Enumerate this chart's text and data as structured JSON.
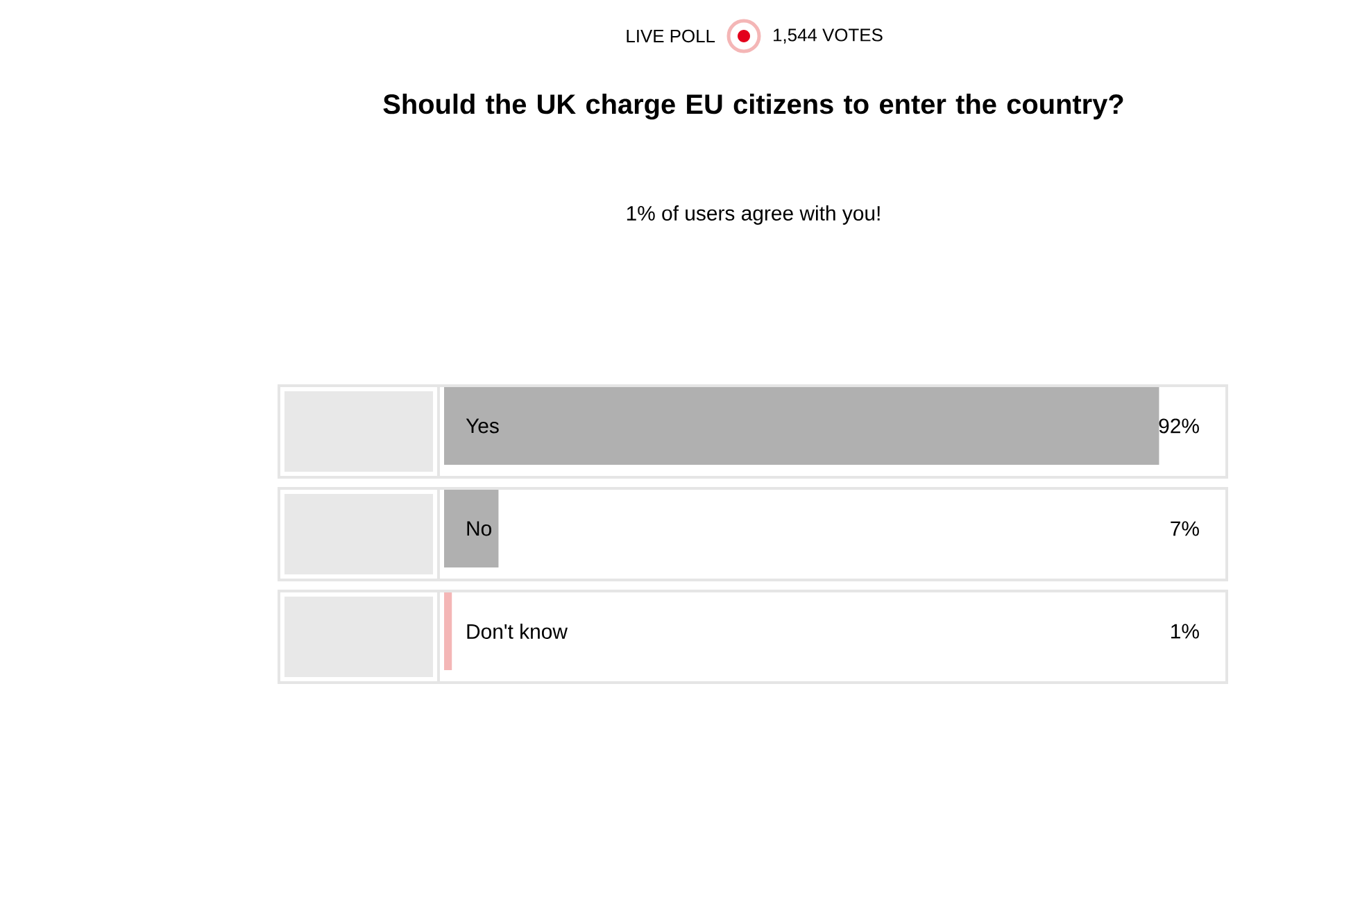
{
  "chart_data": {
    "type": "bar",
    "orientation": "horizontal",
    "title": "Should the UK charge EU citizens to enter the country?",
    "subtitle": "1% of users agree with you!",
    "annotations": [
      "LIVE POLL",
      "1,544 VOTES"
    ],
    "categories": [
      "Yes",
      "No",
      "Don't know"
    ],
    "values": [
      92,
      7,
      1
    ],
    "colors": [
      "#b0b0b0",
      "#b0b0b0",
      "#f4b6b6"
    ],
    "tick_labels": false,
    "data_labels": true,
    "value_labels": [
      "92%",
      "7%",
      "1%"
    ]
  }
}
